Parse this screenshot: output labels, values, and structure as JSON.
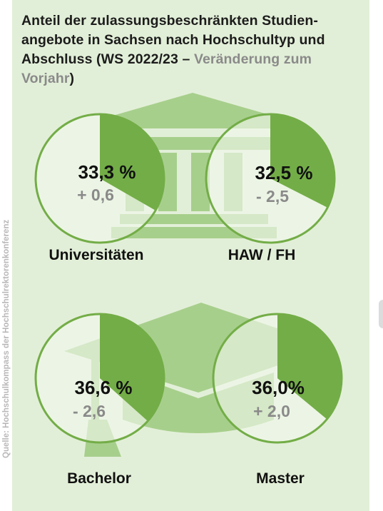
{
  "title": {
    "main": "Anteil der zulassungsbeschränkten Studien-angebote in Sachsen nach Hochschultyp und Abschluss (WS 2022/23 – ",
    "highlight": "Veränderung zum Vorjahr",
    "end": ")"
  },
  "source": "Quelle: Hochschulkompass der Hochschulrektorenkonferenz",
  "colors": {
    "panel": "#e2efd8",
    "slice": "#73ad47",
    "circle_fill": "#f3f8ee",
    "circle_stroke": "#73ad47",
    "icon": "#a7cf8c",
    "change_text": "#8a8a8a"
  },
  "icons": [
    "university-building-icon",
    "graduation-cap-icon"
  ],
  "chart_data": [
    {
      "type": "pie",
      "label": "Universitäten",
      "value": 33.3,
      "value_text": "33,3 %",
      "change": 0.6,
      "change_text": "+ 0,6"
    },
    {
      "type": "pie",
      "label": "HAW / FH",
      "value": 32.5,
      "value_text": "32,5 %",
      "change": -2.5,
      "change_text": "- 2,5"
    },
    {
      "type": "pie",
      "label": "Bachelor",
      "value": 36.6,
      "value_text": "36,6 %",
      "change": -2.6,
      "change_text": "- 2,6"
    },
    {
      "type": "pie",
      "label": "Master",
      "value": 36.0,
      "value_text": "36,0%",
      "change": 2.0,
      "change_text": "+ 2,0"
    }
  ]
}
